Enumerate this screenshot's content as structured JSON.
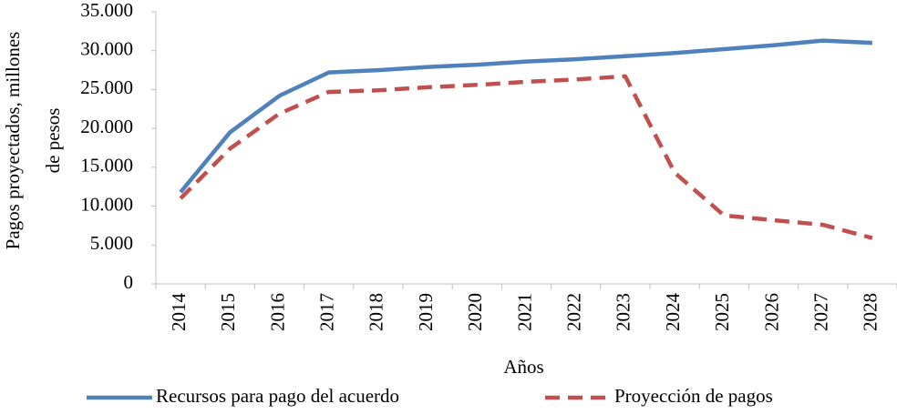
{
  "chart_data": {
    "type": "line",
    "xlabel": "Años",
    "ylabel": [
      "Pagos proyectados, millones",
      "de pesos"
    ],
    "categories": [
      "2014",
      "2015",
      "2016",
      "2017",
      "2018",
      "2019",
      "2020",
      "2021",
      "2022",
      "2023",
      "2024",
      "2025",
      "2026",
      "2027",
      "2028"
    ],
    "series": [
      {
        "name": "Recursos para pago del acuerdo",
        "color": "#4f81bd",
        "dash": false,
        "values": [
          11800,
          19500,
          24200,
          27200,
          27500,
          27900,
          28200,
          28600,
          28900,
          29300,
          29700,
          30200,
          30700,
          31300,
          31000
        ]
      },
      {
        "name": "Proyección de pagos",
        "color": "#c0504d",
        "dash": true,
        "values": [
          11000,
          17400,
          21900,
          24700,
          24900,
          25300,
          25600,
          26000,
          26300,
          26700,
          14300,
          8800,
          8200,
          7600,
          5900
        ]
      }
    ],
    "ylim": [
      0,
      35000
    ],
    "yticks": [
      0,
      {
        "value": 5000,
        "label": "5.000"
      },
      {
        "value": 10000,
        "label": "10.000"
      },
      {
        "value": 15000,
        "label": "15.000"
      },
      {
        "value": 20000,
        "label": "20.000"
      },
      {
        "value": 25000,
        "label": "25.000"
      },
      {
        "value": 30000,
        "label": "30.000"
      },
      {
        "value": 35000,
        "label": "35.000"
      }
    ],
    "grid": false,
    "legend": "bottom"
  }
}
